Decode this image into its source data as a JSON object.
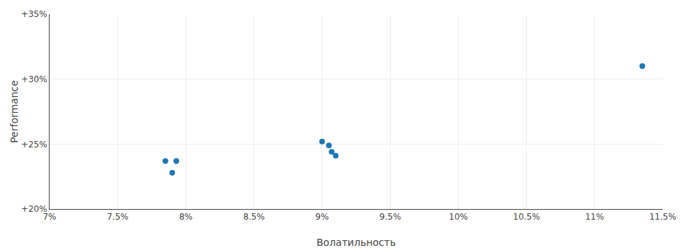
{
  "chart_data": {
    "type": "scatter",
    "xlabel": "Волатильность",
    "ylabel": "Performance",
    "x": [
      0.0785,
      0.0793,
      0.079,
      0.09,
      0.0905,
      0.0907,
      0.091,
      0.1135
    ],
    "values": [
      0.237,
      0.237,
      0.228,
      0.252,
      0.249,
      0.244,
      0.241,
      0.31
    ],
    "xlim": [
      0.07,
      0.115
    ],
    "ylim": [
      0.2,
      0.35
    ],
    "xticks": [
      {
        "value": 0.07,
        "label": "7%"
      },
      {
        "value": 0.075,
        "label": "7.5%"
      },
      {
        "value": 0.08,
        "label": "8%"
      },
      {
        "value": 0.085,
        "label": "8.5%"
      },
      {
        "value": 0.09,
        "label": "9%"
      },
      {
        "value": 0.095,
        "label": "9.5%"
      },
      {
        "value": 0.1,
        "label": "10%"
      },
      {
        "value": 0.105,
        "label": "10.5%"
      },
      {
        "value": 0.11,
        "label": "11%"
      },
      {
        "value": 0.115,
        "label": "11.5%"
      }
    ],
    "yticks": [
      {
        "value": 0.2,
        "label": "+20%"
      },
      {
        "value": 0.25,
        "label": "+25%"
      },
      {
        "value": 0.3,
        "label": "+30%"
      },
      {
        "value": 0.35,
        "label": "+35%"
      }
    ],
    "grid": true,
    "marker": "circle"
  }
}
